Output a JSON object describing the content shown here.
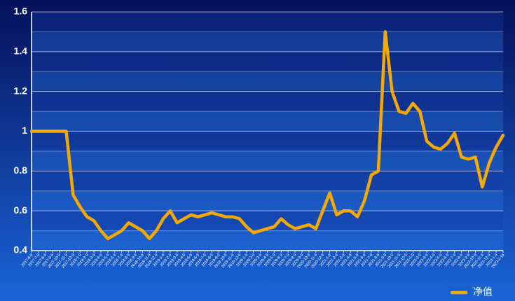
{
  "chart_data": {
    "type": "line",
    "legend_position": "lower right",
    "grid": true,
    "ylim": [
      0.4,
      1.6
    ],
    "yticks": [
      0.4,
      0.6,
      0.8,
      1,
      1.2,
      1.4,
      1.6
    ],
    "categories": [
      "2017-6-9",
      "2017-7-9",
      "2017-8-9",
      "2017-9-9",
      "2017-10-9",
      "2017-11-9",
      "2017-12-9",
      "2018-1-9",
      "2018-2-9",
      "2018-3-9",
      "2018-4-9",
      "2018-5-9",
      "2018-6-9",
      "2018-7-9",
      "2018-8-9",
      "2018-9-9",
      "2018-10-9",
      "2018-11-9",
      "2018-12-9",
      "2019-1-9",
      "2019-2-9",
      "2019-3-9",
      "2019-4-9",
      "2019-5-9",
      "2019-6-9",
      "2019-7-9",
      "2019-8-9",
      "2019-9-9",
      "2019-10-9",
      "2019-11-9",
      "2019-12-9",
      "2020-1-9",
      "2020-2-9",
      "2020-3-9",
      "2020-4-9",
      "2020-5-9",
      "2020-6-9",
      "2020-7-9",
      "2020-8-9",
      "2020-9-9",
      "2020-10-9",
      "2020-11-9",
      "2020-12-9",
      "2021-1-9",
      "2021-2-9",
      "2021-3-9",
      "2021-4-9",
      "2021-5-9",
      "2021-6-9",
      "2021-7-9",
      "2021-8-9",
      "2021-9-9",
      "2021-10-9",
      "2021-11-9",
      "2021-12-9",
      "2022-1-9",
      "2022-2-9",
      "2022-3-9",
      "2022-4-9",
      "2022-5-9",
      "2022-6-9",
      "2022-7-9",
      "2022-8-9",
      "2022-9-9",
      "2022-10-9",
      "2022-11-9",
      "2022-12-9",
      "2023-1-9",
      "2023-2-16"
    ],
    "series": [
      {
        "name": "净值",
        "color": "#f5a800",
        "values": [
          1.0,
          1.0,
          1.0,
          1.0,
          1.0,
          1.0,
          0.68,
          0.62,
          0.57,
          0.55,
          0.5,
          0.46,
          0.48,
          0.5,
          0.54,
          0.52,
          0.5,
          0.46,
          0.5,
          0.56,
          0.6,
          0.54,
          0.56,
          0.58,
          0.57,
          0.58,
          0.59,
          0.58,
          0.57,
          0.57,
          0.56,
          0.52,
          0.49,
          0.5,
          0.51,
          0.52,
          0.56,
          0.53,
          0.51,
          0.52,
          0.53,
          0.51,
          0.6,
          0.69,
          0.58,
          0.6,
          0.6,
          0.57,
          0.65,
          0.78,
          0.8,
          1.5,
          1.2,
          1.1,
          1.09,
          1.14,
          1.1,
          0.95,
          0.92,
          0.91,
          0.94,
          0.99,
          0.87,
          0.86,
          0.87,
          0.72,
          0.84,
          0.92,
          0.98
        ]
      }
    ]
  }
}
